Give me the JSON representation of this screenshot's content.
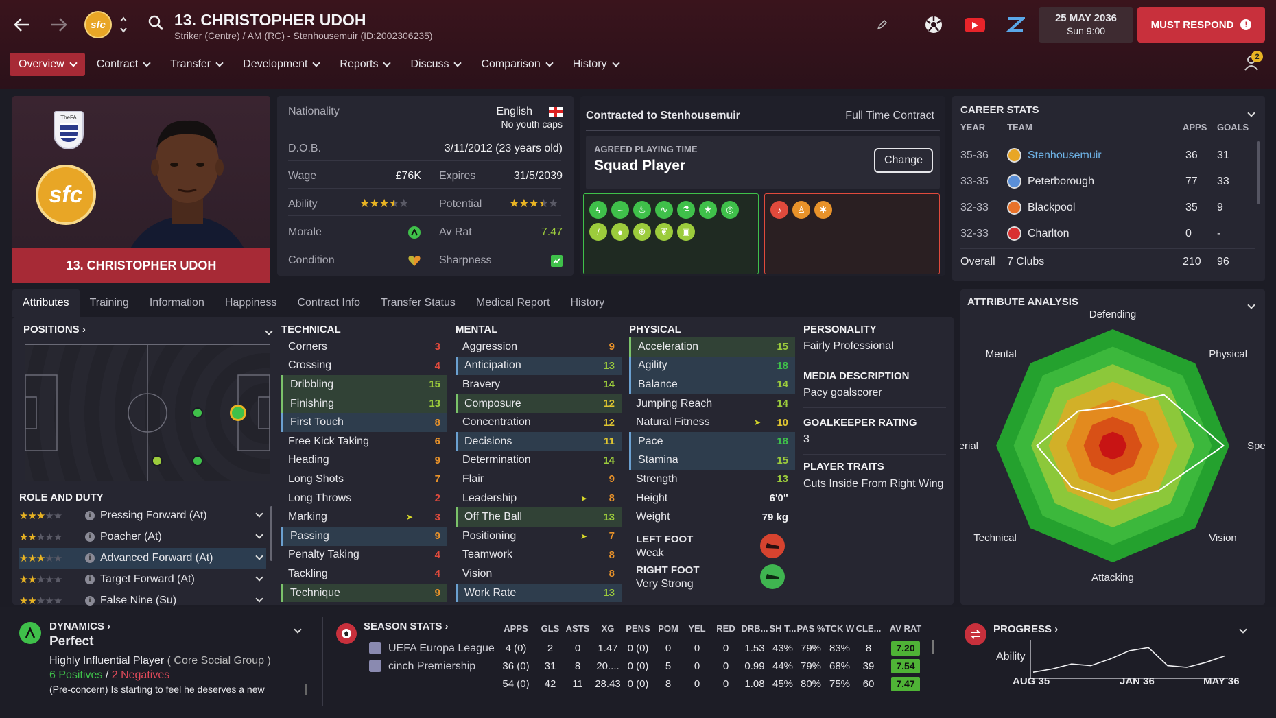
{
  "header": {
    "player_title": "13. CHRISTOPHER UDOH",
    "subtitle": "Striker (Centre) / AM (RC) - Stenhousemuir (ID:2002306235)",
    "date": "25 MAY 2036",
    "time": "Sun 9:00",
    "must_respond": "MUST RESPOND",
    "notification_count": "2",
    "club_badge_text": "sfc"
  },
  "menu": [
    "Overview",
    "Contract",
    "Transfer",
    "Development",
    "Reports",
    "Discuss",
    "Comparison",
    "History"
  ],
  "profile": {
    "name_bar": "13. CHRISTOPHER UDOH",
    "fa_text": "TheFA",
    "nationality_label": "Nationality",
    "nationality": "English",
    "youth_caps": "No youth caps",
    "dob_label": "D.O.B.",
    "dob": "3/11/2012 (23 years old)",
    "wage_label": "Wage",
    "wage": "£76K",
    "expires_label": "Expires",
    "expires": "31/5/2039",
    "ability_label": "Ability",
    "ability_stars": 3.5,
    "potential_label": "Potential",
    "potential_stars": 3.5,
    "morale_label": "Morale",
    "avrat_label": "Av Rat",
    "avrat": "7.47",
    "condition_label": "Condition",
    "sharpness_label": "Sharpness"
  },
  "contract": {
    "contracted_to": "Contracted to Stenhousemuir",
    "contract_type": "Full Time Contract",
    "playing_time_label": "AGREED PLAYING TIME",
    "playing_time": "Squad Player",
    "change_button": "Change"
  },
  "career": {
    "title": "CAREER STATS",
    "headers": {
      "year": "YEAR",
      "team": "TEAM",
      "apps": "APPS",
      "goals": "GOALS"
    },
    "rows": [
      {
        "year": "35-36",
        "team": "Stenhousemuir",
        "apps": "36",
        "goals": "31"
      },
      {
        "year": "33-35",
        "team": "Peterborough",
        "apps": "77",
        "goals": "33"
      },
      {
        "year": "32-33",
        "team": "Blackpool",
        "apps": "35",
        "goals": "9"
      },
      {
        "year": "32-33",
        "team": "Charlton",
        "apps": "0",
        "goals": "-"
      }
    ],
    "overall_label": "Overall",
    "overall_clubs": "7 Clubs",
    "overall_apps": "210",
    "overall_goals": "96"
  },
  "tabs": [
    "Attributes",
    "Training",
    "Information",
    "Happiness",
    "Contract Info",
    "Transfer Status",
    "Medical Report",
    "History"
  ],
  "positions": {
    "title": "POSITIONS",
    "role_title": "ROLE AND DUTY",
    "roles": [
      {
        "stars": 3,
        "name": "Pressing Forward (At)"
      },
      {
        "stars": 2,
        "name": "Poacher (At)"
      },
      {
        "stars": 3,
        "name": "Advanced Forward (At)"
      },
      {
        "stars": 2,
        "name": "Target Forward (At)"
      },
      {
        "stars": 2,
        "name": "False Nine (Su)"
      }
    ]
  },
  "technical": {
    "title": "TECHNICAL",
    "attrs": [
      {
        "n": "Corners",
        "v": 3
      },
      {
        "n": "Crossing",
        "v": 4
      },
      {
        "n": "Dribbling",
        "v": 15
      },
      {
        "n": "Finishing",
        "v": 13
      },
      {
        "n": "First Touch",
        "v": 8
      },
      {
        "n": "Free Kick Taking",
        "v": 6
      },
      {
        "n": "Heading",
        "v": 9
      },
      {
        "n": "Long Shots",
        "v": 7
      },
      {
        "n": "Long Throws",
        "v": 2
      },
      {
        "n": "Marking",
        "v": 3
      },
      {
        "n": "Passing",
        "v": 9
      },
      {
        "n": "Penalty Taking",
        "v": 4
      },
      {
        "n": "Tackling",
        "v": 4
      },
      {
        "n": "Technique",
        "v": 9
      }
    ]
  },
  "mental": {
    "title": "MENTAL",
    "attrs": [
      {
        "n": "Aggression",
        "v": 9
      },
      {
        "n": "Anticipation",
        "v": 13
      },
      {
        "n": "Bravery",
        "v": 14
      },
      {
        "n": "Composure",
        "v": 12
      },
      {
        "n": "Concentration",
        "v": 12
      },
      {
        "n": "Decisions",
        "v": 11
      },
      {
        "n": "Determination",
        "v": 14
      },
      {
        "n": "Flair",
        "v": 9
      },
      {
        "n": "Leadership",
        "v": 8
      },
      {
        "n": "Off The Ball",
        "v": 13
      },
      {
        "n": "Positioning",
        "v": 7
      },
      {
        "n": "Teamwork",
        "v": 8
      },
      {
        "n": "Vision",
        "v": 8
      },
      {
        "n": "Work Rate",
        "v": 13
      }
    ]
  },
  "physical": {
    "title": "PHYSICAL",
    "attrs": [
      {
        "n": "Acceleration",
        "v": 15
      },
      {
        "n": "Agility",
        "v": 18
      },
      {
        "n": "Balance",
        "v": 14
      },
      {
        "n": "Jumping Reach",
        "v": 14
      },
      {
        "n": "Natural Fitness",
        "v": 10
      },
      {
        "n": "Pace",
        "v": 18
      },
      {
        "n": "Stamina",
        "v": 15
      },
      {
        "n": "Strength",
        "v": 13
      }
    ],
    "height_label": "Height",
    "height": "6'0\"",
    "weight_label": "Weight",
    "weight": "79 kg",
    "left_foot_label": "LEFT FOOT",
    "left_foot": "Weak",
    "right_foot_label": "RIGHT FOOT",
    "right_foot": "Very Strong"
  },
  "person": {
    "personality_label": "PERSONALITY",
    "personality": "Fairly Professional",
    "media_label": "MEDIA DESCRIPTION",
    "media": "Pacy goalscorer",
    "gk_label": "GOALKEEPER RATING",
    "gk": "3",
    "traits_label": "PLAYER TRAITS",
    "traits": "Cuts Inside From Right Wing"
  },
  "analysis": {
    "title": "ATTRIBUTE ANALYSIS",
    "labels": [
      "Defending",
      "Physical",
      "Speed",
      "Vision",
      "Attacking",
      "Technical",
      "Aerial",
      "Mental"
    ],
    "values": [
      0.33,
      0.62,
      0.95,
      0.55,
      0.47,
      0.5,
      0.65,
      0.42
    ]
  },
  "dynamics": {
    "title": "DYNAMICS",
    "status": "Perfect",
    "influence": "Highly Influential Player",
    "group": "( Core Social Group )",
    "positives": "6 Positives",
    "slash": "/",
    "negatives": "2 Negatives",
    "concern": "(Pre-concern) Is starting to feel he deserves a new"
  },
  "season": {
    "title": "SEASON STATS",
    "headers": [
      "APPS",
      "GLS",
      "ASTS",
      "XG",
      "PENS",
      "POM",
      "YEL",
      "RED",
      "DRB...",
      "SH T...",
      "PAS %",
      "TCK W",
      "CLE...",
      "AV RAT"
    ],
    "rows": [
      {
        "comp": "UEFA Europa League",
        "cells": [
          "4 (0)",
          "2",
          "0",
          "1.47",
          "0 (0)",
          "0",
          "0",
          "0",
          "1.53",
          "43%",
          "79%",
          "83%",
          "8"
        ],
        "rat": "7.20"
      },
      {
        "comp": "cinch Premiership",
        "cells": [
          "36 (0)",
          "31",
          "8",
          "20....",
          "0 (0)",
          "5",
          "0",
          "0",
          "0.99",
          "44%",
          "79%",
          "68%",
          "39"
        ],
        "rat": "7.54"
      },
      {
        "comp": "",
        "cells": [
          "54 (0)",
          "42",
          "11",
          "28.43",
          "0 (0)",
          "8",
          "0",
          "0",
          "1.08",
          "45%",
          "80%",
          "75%",
          "60"
        ],
        "rat": "7.47"
      }
    ]
  },
  "progress": {
    "title": "PROGRESS",
    "ability_label": "Ability",
    "x_labels": [
      "AUG 35",
      "JAN 36",
      "MAY 36"
    ],
    "values": [
      0.1,
      0.2,
      0.35,
      0.3,
      0.5,
      0.75,
      0.85,
      0.3,
      0.25,
      0.4,
      0.6
    ]
  },
  "colors": {
    "accent": "#a72a36",
    "must_respond": "#c8303c",
    "avrat_green": "#4fb336"
  }
}
